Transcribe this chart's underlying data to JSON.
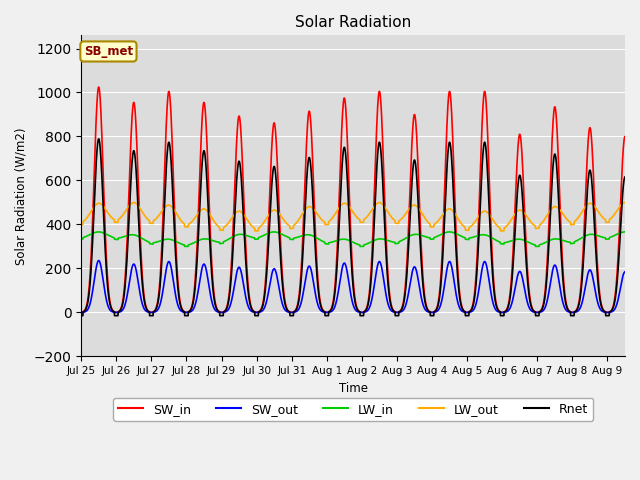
{
  "title": "Solar Radiation",
  "ylabel": "Solar Radiation (W/m2)",
  "xlabel": "Time",
  "ylim": [
    -200,
    1260
  ],
  "yticks": [
    -200,
    0,
    200,
    400,
    600,
    800,
    1000,
    1200
  ],
  "plot_bg_color": "#dcdcdc",
  "fig_bg_color": "#f0f0f0",
  "legend_label": "SB_met",
  "legend_box_facecolor": "#ffffcc",
  "legend_box_edgecolor": "#aa8800",
  "series": {
    "SW_in": {
      "color": "#ff0000",
      "lw": 1.2
    },
    "SW_out": {
      "color": "#0000ff",
      "lw": 1.2
    },
    "LW_in": {
      "color": "#00cc00",
      "lw": 1.2
    },
    "LW_out": {
      "color": "#ffaa00",
      "lw": 1.2
    },
    "Rnet": {
      "color": "#000000",
      "lw": 1.2
    }
  },
  "x_tick_labels": [
    "Jul 25",
    "Jul 26",
    "Jul 27",
    "Jul 28",
    "Jul 29",
    "Jul 30",
    "Jul 31",
    "Aug 1",
    "Aug 2",
    "Aug 3",
    "Aug 4",
    "Aug 5",
    "Aug 6",
    "Aug 7",
    "Aug 8",
    "Aug 9"
  ],
  "num_days": 15.5,
  "sw_in_peaks": [
    1025,
    955,
    1005,
    955,
    893,
    862,
    915,
    975,
    1005,
    900,
    1005,
    1005,
    810,
    935,
    840,
    800
  ]
}
